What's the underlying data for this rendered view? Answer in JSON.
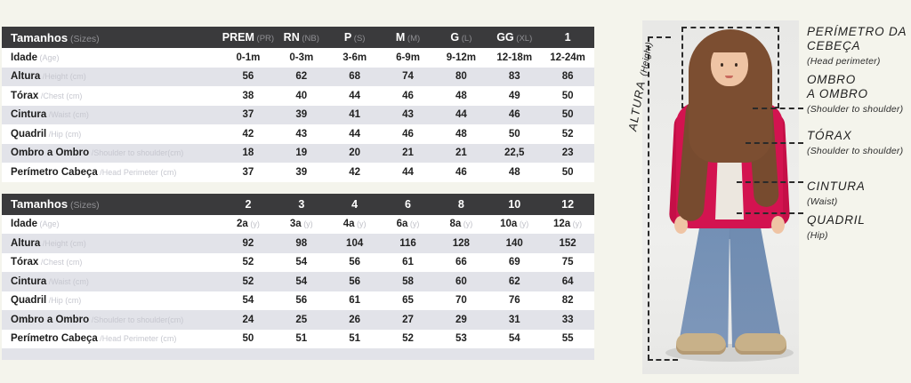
{
  "colors": {
    "page_bg": "#f4f4ec",
    "table_header_bg": "#3a3a3c",
    "row_alt_bg": "#e2e3e9",
    "cardigan_red": "#d31350",
    "jeans_blue": "#7e97ba",
    "dash_line": "#2a2a2a"
  },
  "size_tables": [
    {
      "header_label": "Tamanhos",
      "header_sublabel": "(Sizes)",
      "columns": [
        {
          "main": "PREM",
          "sub": "(PR)"
        },
        {
          "main": "RN",
          "sub": "(NB)"
        },
        {
          "main": "P",
          "sub": "(S)"
        },
        {
          "main": "M",
          "sub": "(M)"
        },
        {
          "main": "G",
          "sub": "(L)"
        },
        {
          "main": "GG",
          "sub": "(XL)"
        },
        {
          "main": "1",
          "sub": ""
        }
      ],
      "rows": [
        {
          "label": "Idade",
          "sublabel": "(Age)",
          "values": [
            "0-1m",
            "0-3m",
            "3-6m",
            "6-9m",
            "9-12m",
            "12-18m",
            "12-24m"
          ]
        },
        {
          "label": "Altura",
          "sublabel": "/Height (cm)",
          "values": [
            "56",
            "62",
            "68",
            "74",
            "80",
            "83",
            "86"
          ]
        },
        {
          "label": "Tórax",
          "sublabel": "/Chest (cm)",
          "values": [
            "38",
            "40",
            "44",
            "46",
            "48",
            "49",
            "50"
          ]
        },
        {
          "label": "Cintura",
          "sublabel": "/Waist (cm)",
          "values": [
            "37",
            "39",
            "41",
            "43",
            "44",
            "46",
            "50"
          ]
        },
        {
          "label": "Quadril",
          "sublabel": "/Hip (cm)",
          "values": [
            "42",
            "43",
            "44",
            "46",
            "48",
            "50",
            "52"
          ]
        },
        {
          "label": "Ombro a Ombro",
          "sublabel": "/Shoulder to shoulder(cm)",
          "values": [
            "18",
            "19",
            "20",
            "21",
            "21",
            "22,5",
            "23"
          ]
        },
        {
          "label": "Perímetro Cabeça",
          "sublabel": "/Head Perimeter (cm)",
          "values": [
            "37",
            "39",
            "42",
            "44",
            "46",
            "48",
            "50"
          ]
        }
      ]
    },
    {
      "header_label": "Tamanhos",
      "header_sublabel": "(Sizes)",
      "columns": [
        {
          "main": "2",
          "sub": ""
        },
        {
          "main": "3",
          "sub": ""
        },
        {
          "main": "4",
          "sub": ""
        },
        {
          "main": "6",
          "sub": ""
        },
        {
          "main": "8",
          "sub": ""
        },
        {
          "main": "10",
          "sub": ""
        },
        {
          "main": "12",
          "sub": ""
        }
      ],
      "rows": [
        {
          "label": "Idade",
          "sublabel": "(Age)",
          "value_suffix": "(y)",
          "values": [
            "2a",
            "3a",
            "4a",
            "6a",
            "8a",
            "10a",
            "12a"
          ]
        },
        {
          "label": "Altura",
          "sublabel": "/Height (cm)",
          "values": [
            "92",
            "98",
            "104",
            "116",
            "128",
            "140",
            "152"
          ]
        },
        {
          "label": "Tórax",
          "sublabel": "/Chest (cm)",
          "values": [
            "52",
            "54",
            "56",
            "61",
            "66",
            "69",
            "75"
          ]
        },
        {
          "label": "Cintura",
          "sublabel": "/Waist (cm)",
          "values": [
            "52",
            "54",
            "56",
            "58",
            "60",
            "62",
            "64"
          ]
        },
        {
          "label": "Quadril",
          "sublabel": "/Hip (cm)",
          "values": [
            "54",
            "56",
            "61",
            "65",
            "70",
            "76",
            "82"
          ]
        },
        {
          "label": "Ombro a Ombro",
          "sublabel": "/Shoulder to shoulder(cm)",
          "values": [
            "24",
            "25",
            "26",
            "27",
            "29",
            "31",
            "33"
          ]
        },
        {
          "label": "Perímetro Cabeça",
          "sublabel": "/Head Perimeter (cm)",
          "values": [
            "50",
            "51",
            "51",
            "52",
            "53",
            "54",
            "55"
          ]
        }
      ]
    }
  ],
  "photo": {
    "height_label": "ALTURA",
    "height_sublabel": "(Height)"
  },
  "measurements": [
    {
      "title": "PERÍMETRO DA\nCEBEÇA",
      "sub": "(Head perimeter)"
    },
    {
      "title": "OMBRO\nA OMBRO",
      "sub": "(Shoulder to shoulder)"
    },
    {
      "title": "TÓRAX",
      "sub": "(Shoulder to shoulder)"
    },
    {
      "title": "CINTURA",
      "sub": "(Waist)"
    },
    {
      "title": "QUADRIL",
      "sub": "(Hip)"
    }
  ]
}
